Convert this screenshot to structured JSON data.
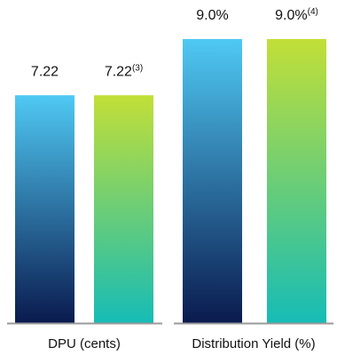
{
  "chart_data": [
    {
      "type": "bar",
      "xlabel": "DPU (cents)",
      "categories": [
        "",
        ""
      ],
      "values": [
        7.22,
        7.22
      ],
      "data_labels": [
        "7.22",
        "7.22"
      ],
      "data_label_footnotes": [
        "",
        "(3)"
      ],
      "colors": [
        {
          "top": "#4fc9f4",
          "bottom": "#0a1a4e"
        },
        {
          "top": "#c2df37",
          "bottom": "#16bcb6"
        }
      ]
    },
    {
      "type": "bar",
      "xlabel": "Distribution Yield  (%)",
      "categories": [
        "",
        ""
      ],
      "values": [
        9.0,
        9.0
      ],
      "data_labels": [
        "9.0%",
        "9.0%"
      ],
      "data_label_footnotes": [
        "",
        "(4)"
      ],
      "colors": [
        {
          "top": "#4fc9f4",
          "bottom": "#0a1a4e"
        },
        {
          "top": "#c2df37",
          "bottom": "#16bcb6"
        }
      ]
    }
  ],
  "colors": {
    "baseline": "#9a9a9a",
    "text": "#111111"
  }
}
